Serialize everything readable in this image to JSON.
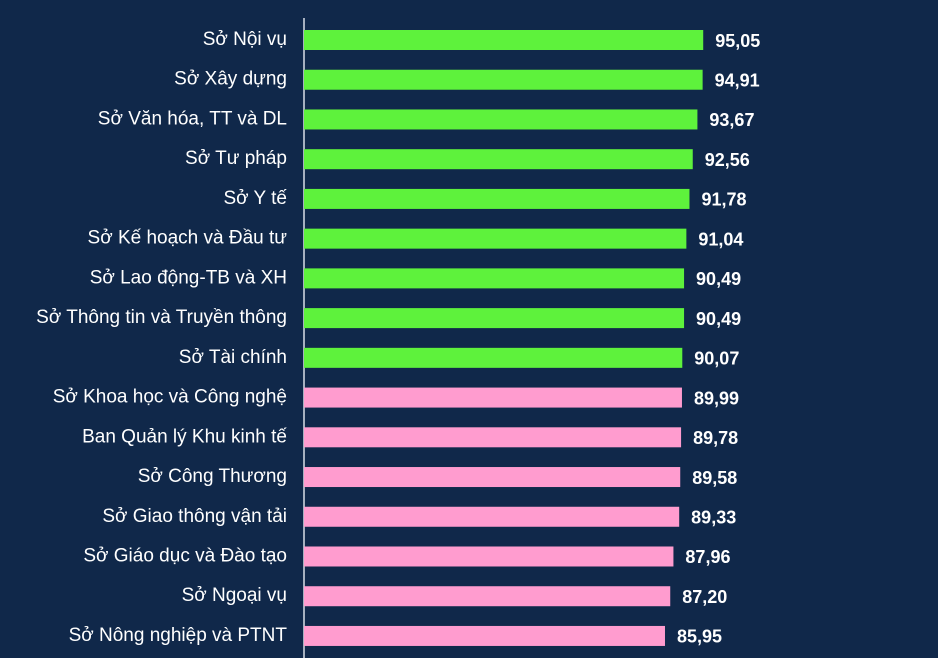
{
  "chart_data": {
    "type": "bar",
    "orientation": "horizontal",
    "categories": [
      "Sở Nội vụ",
      "Sở Xây dựng",
      "Sở Văn hóa, TT và DL",
      "Sở Tư pháp",
      "Sở Y tế",
      "Sở Kế hoạch và Đầu tư",
      "Sở Lao động-TB và XH",
      "Sở Thông tin và Truyền thông",
      "Sở Tài chính",
      "Sở Khoa học và Công nghệ",
      "Ban Quản lý Khu kinh tế",
      "Sở Công Thương",
      "Sở Giao thông vận tải",
      "Sở Giáo dục và Đào tạo",
      "Sở Ngoại vụ",
      "Sở Nông nghiệp và PTNT"
    ],
    "values": [
      95.05,
      94.91,
      93.67,
      92.56,
      91.78,
      91.04,
      90.49,
      90.49,
      90.07,
      89.99,
      89.78,
      89.58,
      89.33,
      87.96,
      87.2,
      85.95
    ],
    "value_labels": [
      "95,05",
      "94,91",
      "93,67",
      "92,56",
      "91,78",
      "91,04",
      "90,49",
      "90,49",
      "90,07",
      "89,99",
      "89,78",
      "89,58",
      "89,33",
      "87,96",
      "87,20",
      "85,95"
    ],
    "colors": [
      "#5ef23c",
      "#5ef23c",
      "#5ef23c",
      "#5ef23c",
      "#5ef23c",
      "#5ef23c",
      "#5ef23c",
      "#5ef23c",
      "#5ef23c",
      "#ff9ccf",
      "#ff9ccf",
      "#ff9ccf",
      "#ff9ccf",
      "#ff9ccf",
      "#ff9ccf",
      "#ff9ccf"
    ],
    "xlim": [
      0,
      150
    ]
  }
}
